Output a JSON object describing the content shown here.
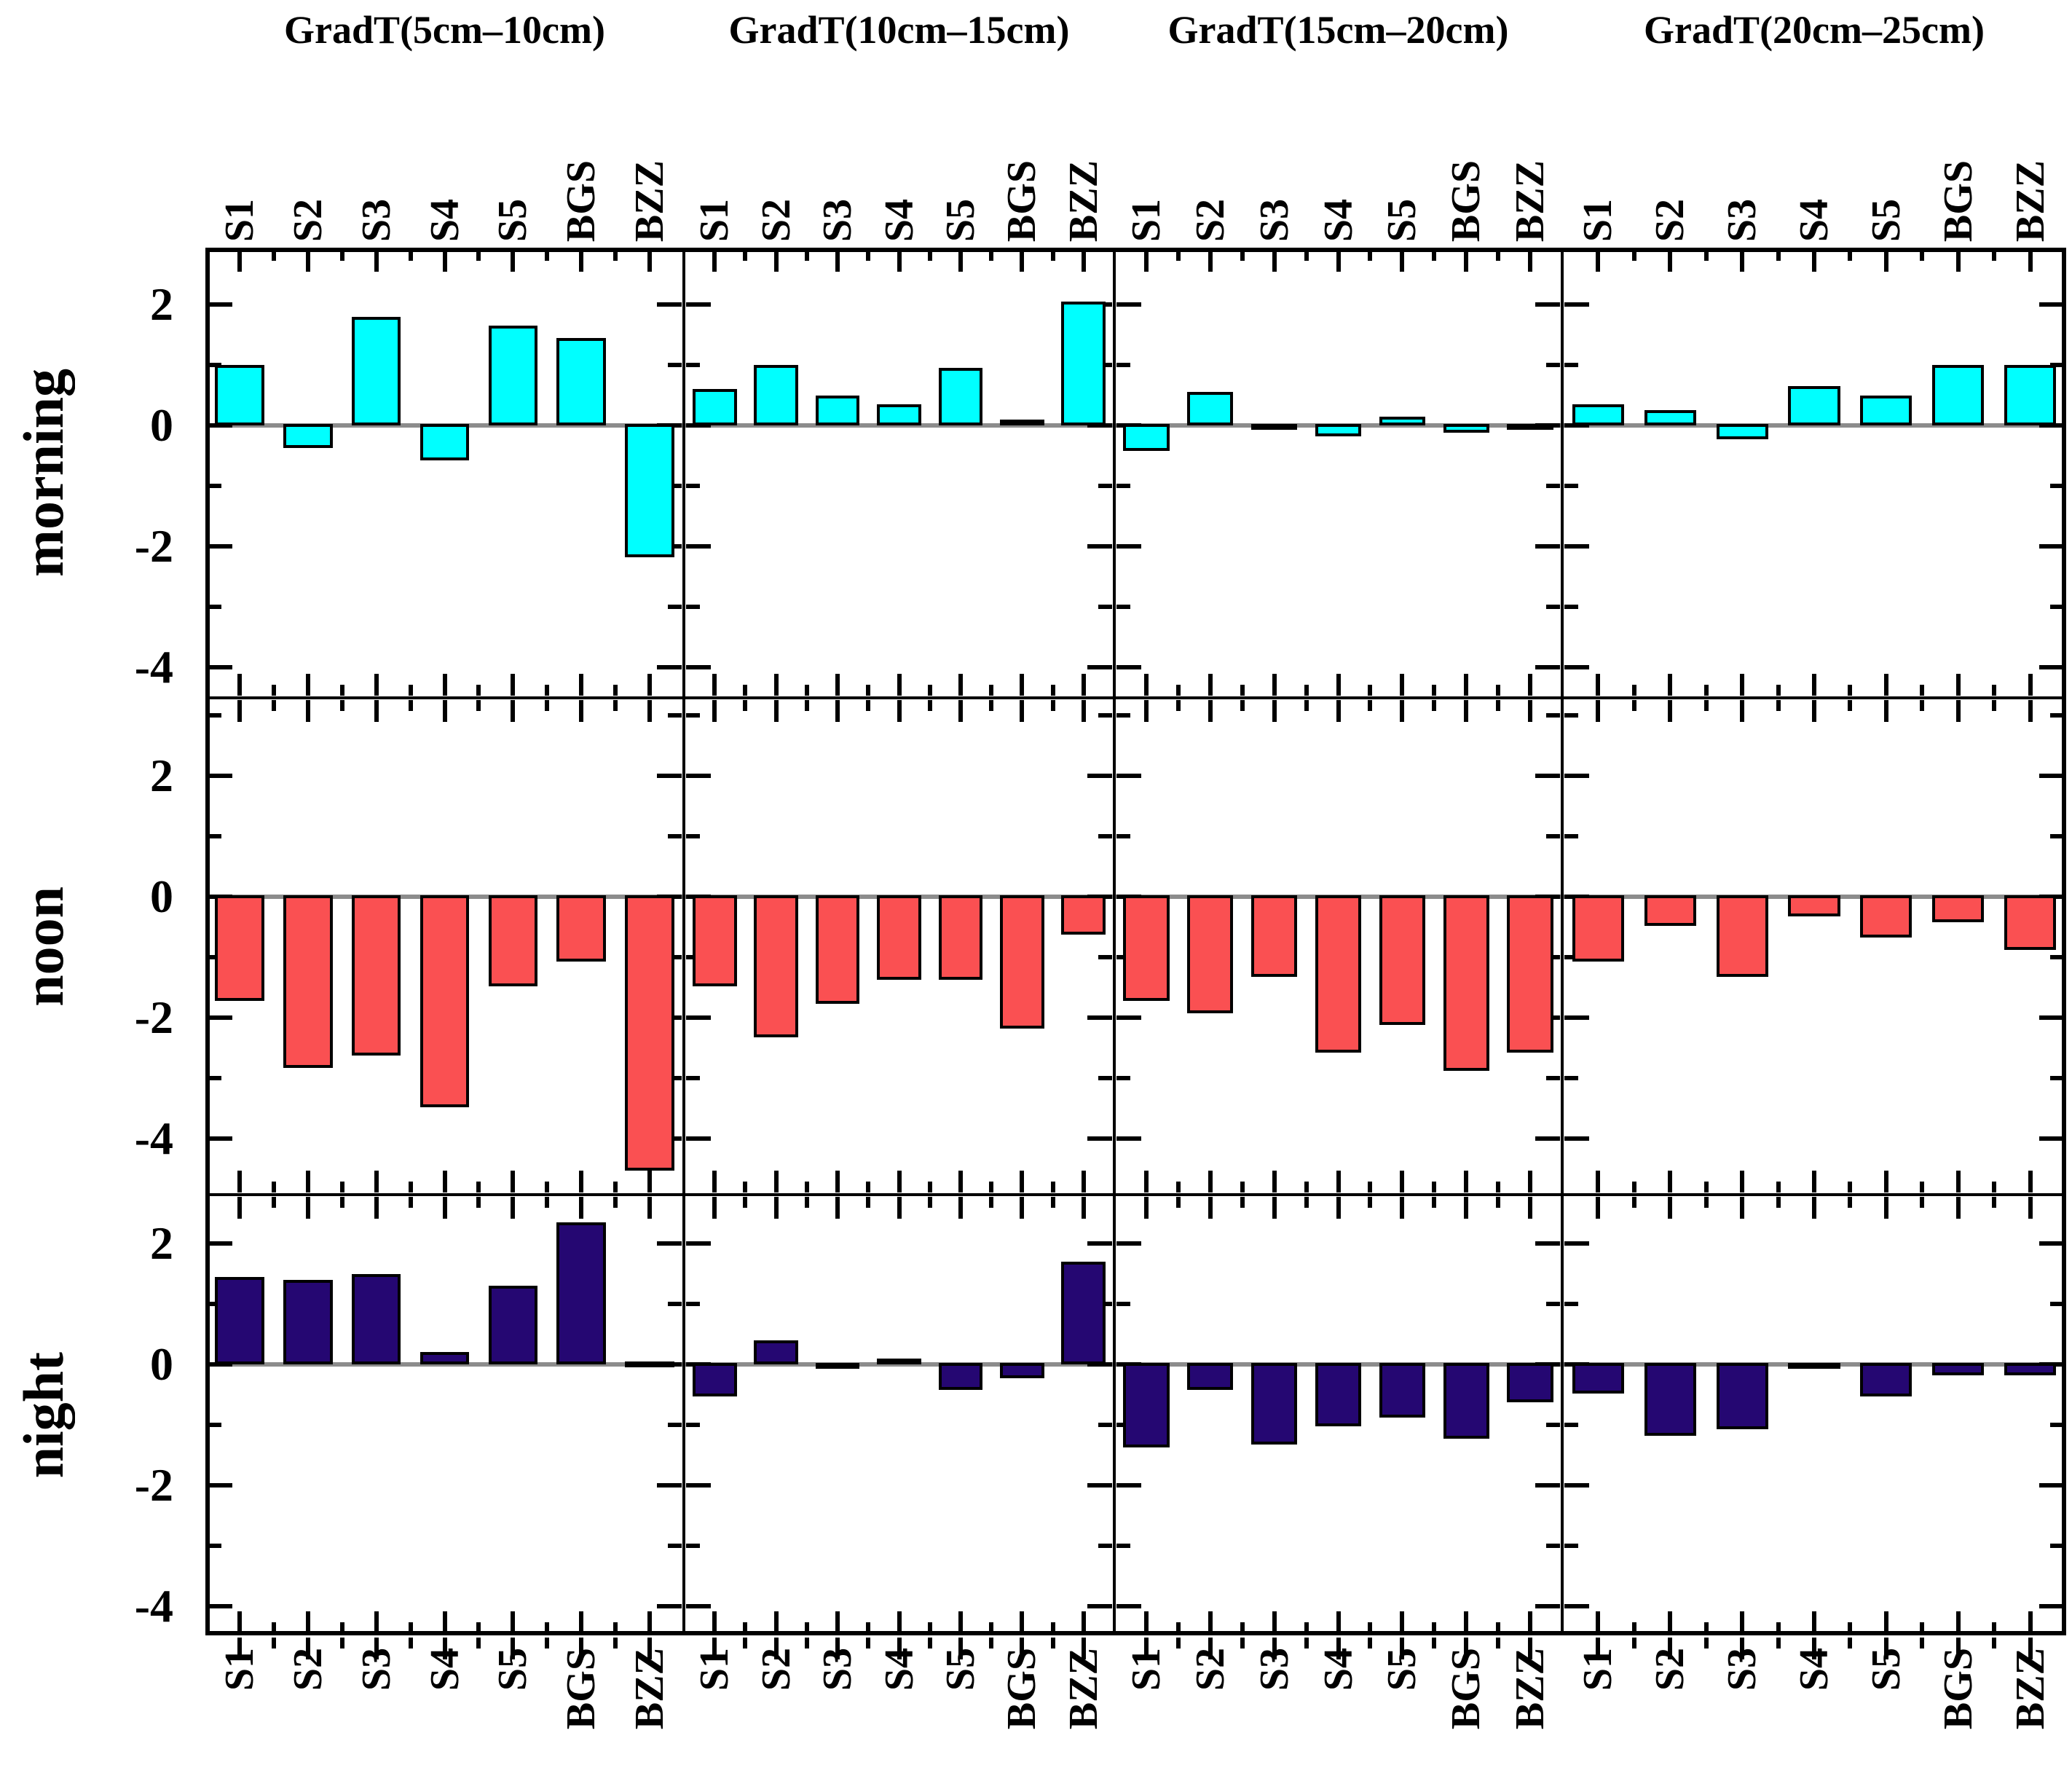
{
  "figure": {
    "column_titles": [
      "GradT(5cm–10cm)",
      "GradT(10cm–15cm)",
      "GradT(15cm–20cm)",
      "GradT(20cm–25cm)"
    ],
    "row_labels": [
      "morning",
      "noon",
      "night"
    ],
    "categories": [
      "S1",
      "S2",
      "S3",
      "S4",
      "S5",
      "BGS",
      "BZZ"
    ],
    "y_tick_labels": [
      "2",
      "0",
      "-2",
      "-4"
    ],
    "colors": {
      "morning_bar": "#00FFFF",
      "noon_bar": "#FA5052",
      "night_bar": "#250772",
      "zero_line": "#8C8C8C",
      "frame": "#000000"
    }
  },
  "chart_data": {
    "type": "bar",
    "layout": "4 columns × 3 rows of panels sharing axes",
    "categories": [
      "S1",
      "S2",
      "S3",
      "S4",
      "S5",
      "BGS",
      "BZZ"
    ],
    "column_titles": [
      "GradT(5cm–10cm)",
      "GradT(10cm–15cm)",
      "GradT(15cm–20cm)",
      "GradT(20cm–25cm)"
    ],
    "row_labels": [
      "morning",
      "noon",
      "night"
    ],
    "y_axis": {
      "major_ticks": [
        2,
        0,
        -2,
        -4
      ],
      "minor_ticks": [
        3,
        1,
        -1,
        -3
      ],
      "approx_range": [
        -4.9,
        3.0
      ],
      "zero_line": true
    },
    "panels": [
      {
        "row": "morning",
        "column": "GradT(5cm–10cm)",
        "values": [
          1.0,
          -0.4,
          1.8,
          -0.6,
          1.65,
          1.45,
          -2.2
        ]
      },
      {
        "row": "morning",
        "column": "GradT(10cm–15cm)",
        "values": [
          0.6,
          1.0,
          0.5,
          0.35,
          0.95,
          0.1,
          2.05
        ]
      },
      {
        "row": "morning",
        "column": "GradT(15cm–20cm)",
        "values": [
          -0.45,
          0.55,
          -0.05,
          -0.2,
          0.15,
          -0.15,
          -0.1
        ]
      },
      {
        "row": "morning",
        "column": "GradT(20cm–25cm)",
        "values": [
          0.35,
          0.25,
          -0.25,
          0.65,
          0.5,
          1.0,
          1.0
        ]
      },
      {
        "row": "noon",
        "column": "GradT(5cm–10cm)",
        "values": [
          -1.75,
          -2.85,
          -2.65,
          -3.5,
          -1.5,
          -1.1,
          -4.55
        ]
      },
      {
        "row": "noon",
        "column": "GradT(10cm–15cm)",
        "values": [
          -1.5,
          -2.35,
          -1.8,
          -1.4,
          -1.4,
          -2.2,
          -0.65
        ]
      },
      {
        "row": "noon",
        "column": "GradT(15cm–20cm)",
        "values": [
          -1.75,
          -1.95,
          -1.35,
          -2.6,
          -2.15,
          -2.9,
          -2.6
        ]
      },
      {
        "row": "noon",
        "column": "GradT(20cm–25cm)",
        "values": [
          -1.1,
          -0.5,
          -1.35,
          -0.35,
          -0.7,
          -0.45,
          -0.9
        ]
      },
      {
        "row": "night",
        "column": "GradT(5cm–10cm)",
        "values": [
          1.45,
          1.4,
          1.5,
          0.2,
          1.3,
          2.35,
          0.05
        ]
      },
      {
        "row": "night",
        "column": "GradT(10cm–15cm)",
        "values": [
          -0.55,
          0.4,
          -0.1,
          0.1,
          -0.45,
          -0.25,
          1.7
        ]
      },
      {
        "row": "night",
        "column": "GradT(15cm–20cm)",
        "values": [
          -1.4,
          -0.45,
          -1.35,
          -1.05,
          -0.9,
          -1.25,
          -0.65
        ]
      },
      {
        "row": "night",
        "column": "GradT(20cm–25cm)",
        "values": [
          -0.5,
          -1.2,
          -1.1,
          -0.05,
          -0.55,
          -0.2,
          -0.2
        ]
      }
    ]
  }
}
